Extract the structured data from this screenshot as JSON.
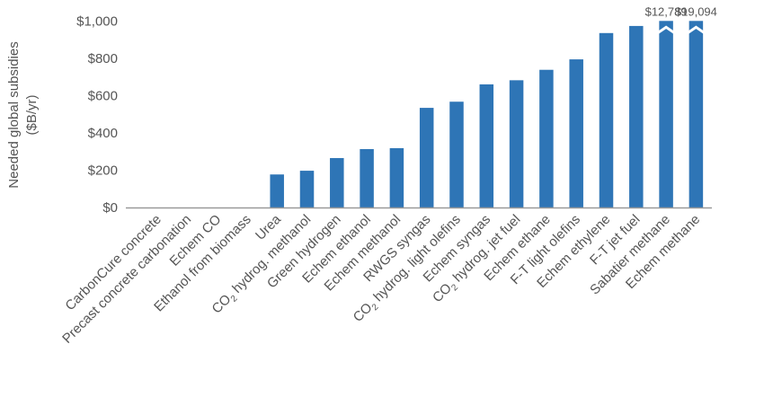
{
  "chart_data": {
    "type": "bar",
    "ylabel_line1": "Needed global subsidies",
    "ylabel_line2": "($B/yr)",
    "ylim": [
      0,
      1000
    ],
    "yticks": [
      "$0",
      "$200",
      "$400",
      "$600",
      "$800",
      "$1,000"
    ],
    "ytick_values": [
      0,
      200,
      400,
      600,
      800,
      1000
    ],
    "grid": false,
    "bar_color": "#2e75b6",
    "axis_break": true,
    "categories": [
      "CarbonCure concrete",
      "Precast concrete carbonation",
      "Echem CO",
      "Ethanol from biomass",
      "Urea",
      "CO2 hydrog. methanol",
      "Green hydrogen",
      "Echem ethanol",
      "Echem methanol",
      "RWGS syngas",
      "CO2 hydrog. light olefins",
      "Echem syngas",
      "CO2 hydrog. jet fuel",
      "Echem ethane",
      "F-T light olefins",
      "Echem ethylene",
      "F-T jet fuel",
      "Sabatier methane",
      "Echem methane"
    ],
    "values": [
      0,
      0,
      0,
      0,
      177,
      197,
      265,
      313,
      318,
      534,
      567,
      660,
      682,
      738,
      794,
      935,
      973,
      12789,
      19094
    ],
    "data_labels": {
      "17": "$12,789",
      "18": "$19,094"
    }
  }
}
